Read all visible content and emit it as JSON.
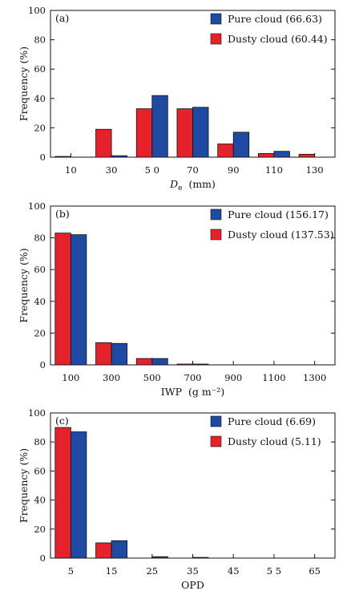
{
  "colors": {
    "pure": "#1f4aa3",
    "dusty": "#e5212a"
  },
  "chart_data": [
    {
      "type": "bar",
      "panel_label": "(a)",
      "categories": [
        "10",
        "30",
        "5 0",
        "70",
        "90",
        "110",
        "130"
      ],
      "series": [
        {
          "name": "Pure cloud (66.63)",
          "values": [
            0,
            1,
            42,
            34,
            17,
            4,
            0
          ]
        },
        {
          "name": "Dusty cloud (60.44)",
          "values": [
            0.5,
            19,
            33,
            33,
            9,
            2.5,
            2
          ]
        }
      ],
      "ylabel": "Frequency (%)",
      "xlabel_main": "D",
      "xlabel_sub": "e",
      "xlabel_units": "(mm)",
      "ylim": [
        0,
        100
      ],
      "yticks": [
        "0",
        "20",
        "40",
        "60",
        "80",
        "100"
      ],
      "legend": "top-right"
    },
    {
      "type": "bar",
      "panel_label": "(b)",
      "categories": [
        "100",
        "300",
        "500",
        "700",
        "900",
        "1100",
        "1300"
      ],
      "series": [
        {
          "name": "Pure cloud (156.17)",
          "values": [
            82,
            13.5,
            4,
            0.5,
            0,
            0,
            0
          ]
        },
        {
          "name": "Dusty cloud (137.53)",
          "values": [
            83,
            14,
            4,
            0.5,
            0,
            0,
            0
          ]
        }
      ],
      "ylabel": "Frequency (%)",
      "xlabel_main": "IWP",
      "xlabel_units": "(g m⁻²)",
      "ylim": [
        0,
        100
      ],
      "yticks": [
        "0",
        "20",
        "40",
        "60",
        "80",
        "100"
      ],
      "legend": "top-right"
    },
    {
      "type": "bar",
      "panel_label": "(c)",
      "categories": [
        "5",
        "15",
        "25",
        "35",
        "45",
        "5 5",
        "65"
      ],
      "series": [
        {
          "name": "Pure cloud (6.69)",
          "values": [
            87,
            12,
            1,
            0.5,
            0,
            0,
            0
          ]
        },
        {
          "name": "Dusty cloud (5.11)",
          "values": [
            90,
            10.5,
            0,
            0,
            0,
            0,
            0
          ]
        }
      ],
      "ylabel": "Frequency (%)",
      "xlabel_main": "OPD",
      "ylim": [
        0,
        100
      ],
      "yticks": [
        "0",
        "20",
        "40",
        "60",
        "80",
        "100"
      ],
      "legend": "top-right"
    }
  ]
}
